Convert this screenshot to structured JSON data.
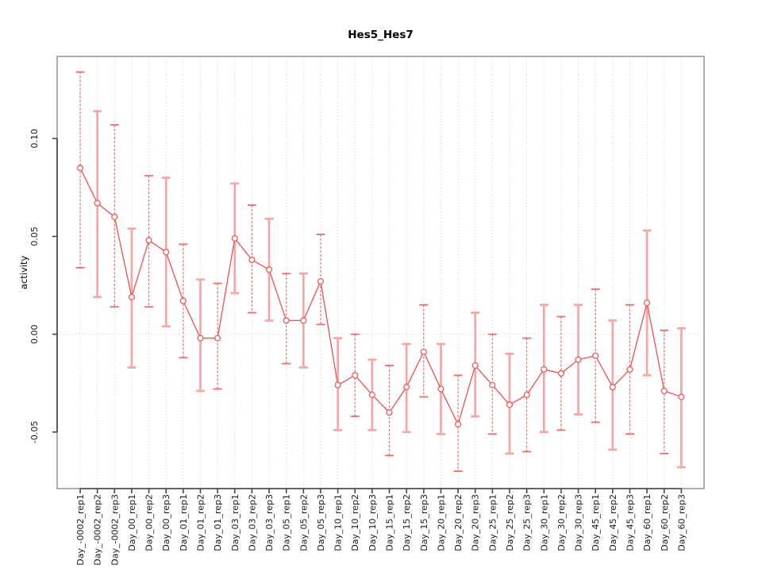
{
  "figure": {
    "title": "Hes5_Hes7",
    "y_axis_label": "activity"
  },
  "colors": {
    "line": "#ee5a5a",
    "marker_stroke": "#ee5a5a",
    "marker_fill": "#ffffff",
    "error_bar_thin": "#f06c6c",
    "error_bar_thick": "#f7a6a6",
    "grid": "#d2d2d2",
    "box_border": "#999999",
    "axis": "#454545",
    "tick_label": "#1a1a1a"
  },
  "chart_data": {
    "type": "scatter",
    "title": "Hes5_Hes7",
    "xlabel": "",
    "ylabel": "activity",
    "ylim": [
      -0.079,
      0.142
    ],
    "yticks": [
      -0.05,
      0.0,
      0.05,
      0.1
    ],
    "ytick_labels": [
      "-0.05",
      "0.00",
      "0.05",
      "0.10"
    ],
    "grid": "vertical dotted gridline at every category; dotted horizontal line at y=0",
    "legend": "none",
    "marker": "open-circle",
    "error_bars": true,
    "categories": [
      "Day_-0002_rep1",
      "Day_-0002_rep2",
      "Day_-0002_rep3",
      "Day_00_rep1",
      "Day_00_rep2",
      "Day_00_rep3",
      "Day_01_rep1",
      "Day_01_rep2",
      "Day_01_rep3",
      "Day_03_rep1",
      "Day_03_rep2",
      "Day_03_rep3",
      "Day_05_rep1",
      "Day_05_rep2",
      "Day_05_rep3",
      "Day_10_rep1",
      "Day_10_rep2",
      "Day_10_rep3",
      "Day_15_rep1",
      "Day_15_rep2",
      "Day_15_rep3",
      "Day_20_rep1",
      "Day_20_rep2",
      "Day_20_rep3",
      "Day_25_rep1",
      "Day_25_rep2",
      "Day_25_rep3",
      "Day_30_rep1",
      "Day_30_rep2",
      "Day_30_rep3",
      "Day_45_rep1",
      "Day_45_rep2",
      "Day_45_rep3",
      "Day_60_rep1",
      "Day_60_rep2",
      "Day_60_rep3"
    ],
    "series": [
      {
        "name": "Hes5_Hes7",
        "values": [
          0.085,
          0.067,
          0.06,
          0.019,
          0.048,
          0.042,
          0.017,
          -0.002,
          -0.002,
          0.049,
          0.038,
          0.033,
          0.007,
          0.007,
          0.027,
          -0.026,
          -0.021,
          -0.031,
          -0.04,
          -0.027,
          -0.009,
          -0.028,
          -0.046,
          -0.016,
          -0.026,
          -0.036,
          -0.031,
          -0.018,
          -0.02,
          -0.013,
          -0.011,
          -0.027,
          -0.018,
          0.016,
          -0.029,
          -0.032
        ],
        "error_high": [
          0.134,
          0.114,
          0.107,
          0.054,
          0.081,
          0.08,
          0.046,
          0.028,
          0.026,
          0.077,
          0.066,
          0.059,
          0.031,
          0.031,
          0.051,
          -0.002,
          0.0,
          -0.013,
          -0.016,
          -0.005,
          0.015,
          -0.005,
          -0.021,
          0.011,
          0.0,
          -0.01,
          -0.002,
          0.015,
          0.009,
          0.015,
          0.023,
          0.007,
          0.015,
          0.053,
          0.002,
          0.003
        ],
        "error_low": [
          0.034,
          0.019,
          0.014,
          -0.017,
          0.014,
          0.004,
          -0.012,
          -0.029,
          -0.028,
          0.021,
          0.011,
          0.007,
          -0.015,
          -0.017,
          0.005,
          -0.049,
          -0.042,
          -0.049,
          -0.062,
          -0.05,
          -0.032,
          -0.051,
          -0.07,
          -0.042,
          -0.051,
          -0.061,
          -0.06,
          -0.05,
          -0.049,
          -0.041,
          -0.045,
          -0.059,
          -0.051,
          -0.021,
          -0.061,
          -0.068
        ]
      }
    ]
  }
}
